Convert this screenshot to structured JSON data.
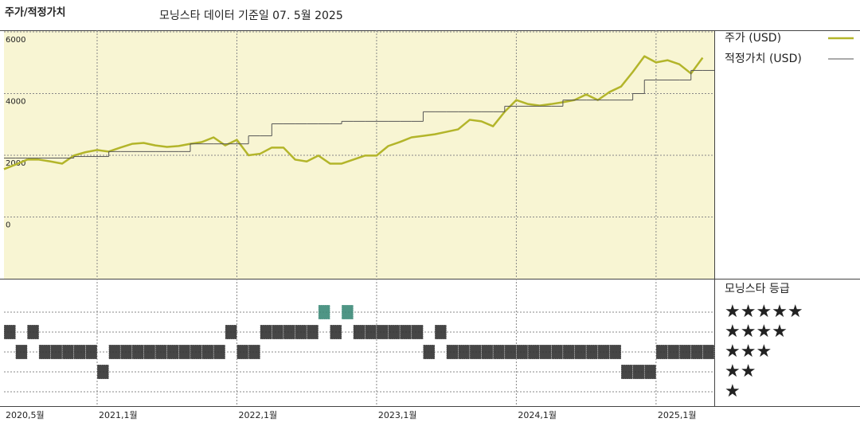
{
  "chart_data": [
    {
      "type": "line",
      "title": "주가/적정가치",
      "subtitle": "모닝스타 데이터 기준일 07. 5월 2025",
      "legend": "right",
      "grid": true,
      "background": "#f8f5d3",
      "x": [
        "2020-05",
        "2020-06",
        "2020-07",
        "2020-08",
        "2020-09",
        "2020-10",
        "2020-11",
        "2020-12",
        "2021-01",
        "2021-02",
        "2021-03",
        "2021-04",
        "2021-05",
        "2021-06",
        "2021-07",
        "2021-08",
        "2021-09",
        "2021-10",
        "2021-11",
        "2021-12",
        "2022-01",
        "2022-02",
        "2022-03",
        "2022-04",
        "2022-05",
        "2022-06",
        "2022-07",
        "2022-08",
        "2022-09",
        "2022-10",
        "2022-11",
        "2022-12",
        "2023-01",
        "2023-02",
        "2023-03",
        "2023-04",
        "2023-05",
        "2023-06",
        "2023-07",
        "2023-08",
        "2023-09",
        "2023-10",
        "2023-11",
        "2023-12",
        "2024-01",
        "2024-02",
        "2024-03",
        "2024-04",
        "2024-05",
        "2024-06",
        "2024-07",
        "2024-08",
        "2024-09",
        "2024-10",
        "2024-11",
        "2024-12",
        "2025-01",
        "2025-02",
        "2025-03",
        "2025-04",
        "2025-05"
      ],
      "series": [
        {
          "name": "주가 (USD)",
          "color": "#b3b52a",
          "style": "line",
          "values": [
            1550,
            1700,
            1860,
            1860,
            1800,
            1730,
            1990,
            2100,
            2170,
            2120,
            2250,
            2370,
            2400,
            2320,
            2270,
            2300,
            2370,
            2430,
            2580,
            2320,
            2500,
            2000,
            2050,
            2250,
            2250,
            1860,
            1800,
            1990,
            1730,
            1730,
            1860,
            1990,
            1990,
            2300,
            2430,
            2580,
            2630,
            2680,
            2760,
            2840,
            3150,
            3100,
            2940,
            3410,
            3790,
            3660,
            3610,
            3660,
            3720,
            3790,
            3970,
            3790,
            4050,
            4230,
            4700,
            5210,
            5010,
            5080,
            4950,
            4650,
            5160
          ]
        },
        {
          "name": "적정가치 (USD)",
          "color": "#555555",
          "style": "step",
          "values": [
            1910,
            1910,
            1910,
            1910,
            1910,
            1910,
            1960,
            1960,
            1960,
            2120,
            2120,
            2120,
            2120,
            2120,
            2120,
            2120,
            2370,
            2370,
            2370,
            2370,
            2370,
            2630,
            2630,
            3020,
            3020,
            3020,
            3020,
            3020,
            3020,
            3100,
            3100,
            3100,
            3100,
            3100,
            3100,
            3100,
            3410,
            3410,
            3410,
            3410,
            3410,
            3410,
            3410,
            3590,
            3590,
            3590,
            3590,
            3590,
            3790,
            3790,
            3790,
            3790,
            3790,
            3790,
            4000,
            4440,
            4440,
            4440,
            4440,
            4750,
            4750
          ]
        }
      ],
      "xlim": [
        "2020-05",
        "2025-06"
      ],
      "xticks": [
        {
          "value": "2020-05",
          "label": "2020,5월"
        },
        {
          "value": "2021-01",
          "label": "2021,1월"
        },
        {
          "value": "2022-01",
          "label": "2022,1월"
        },
        {
          "value": "2023-01",
          "label": "2023,1월"
        },
        {
          "value": "2024-01",
          "label": "2024,1월"
        },
        {
          "value": "2025-01",
          "label": "2025,1월"
        }
      ],
      "ylim": [
        -2000,
        6000
      ],
      "yticks": [
        0,
        2000,
        4000,
        6000
      ]
    },
    {
      "type": "rating",
      "title": "모닝스타 등급",
      "color": "#333333",
      "top_color": "#3d8a78",
      "categories": [
        "★",
        "★★",
        "★★★",
        "★★★★",
        "★★★★★"
      ],
      "x": [
        "2020-05",
        "2020-06",
        "2020-07",
        "2020-08",
        "2020-09",
        "2020-10",
        "2020-11",
        "2020-12",
        "2021-01",
        "2021-02",
        "2021-03",
        "2021-04",
        "2021-05",
        "2021-06",
        "2021-07",
        "2021-08",
        "2021-09",
        "2021-10",
        "2021-11",
        "2021-12",
        "2022-01",
        "2022-02",
        "2022-03",
        "2022-04",
        "2022-05",
        "2022-06",
        "2022-07",
        "2022-08",
        "2022-09",
        "2022-10",
        "2022-11",
        "2022-12",
        "2023-01",
        "2023-02",
        "2023-03",
        "2023-04",
        "2023-05",
        "2023-06",
        "2023-07",
        "2023-08",
        "2023-09",
        "2023-10",
        "2023-11",
        "2023-12",
        "2024-01",
        "2024-02",
        "2024-03",
        "2024-04",
        "2024-05",
        "2024-06",
        "2024-07",
        "2024-08",
        "2024-09",
        "2024-10",
        "2024-11",
        "2024-12",
        "2025-01",
        "2025-02",
        "2025-03",
        "2025-04",
        "2025-05"
      ],
      "values": [
        4,
        3,
        4,
        3,
        3,
        3,
        3,
        3,
        2,
        3,
        3,
        3,
        3,
        3,
        3,
        3,
        3,
        3,
        3,
        4,
        3,
        3,
        4,
        4,
        4,
        4,
        4,
        5,
        4,
        5,
        4,
        4,
        4,
        4,
        4,
        4,
        3,
        4,
        3,
        3,
        3,
        3,
        3,
        3,
        3,
        3,
        3,
        3,
        3,
        3,
        3,
        3,
        3,
        2,
        2,
        2,
        3,
        3,
        3,
        3,
        3
      ]
    }
  ]
}
